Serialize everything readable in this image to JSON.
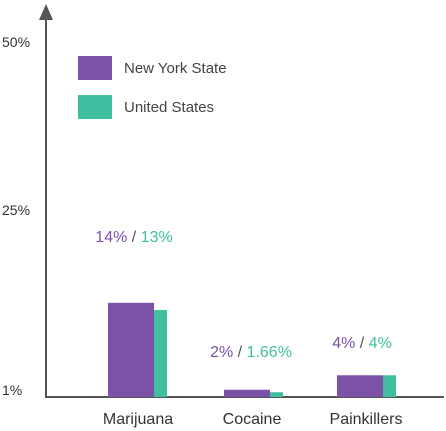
{
  "chart_data": {
    "type": "bar",
    "title": "",
    "xlabel": "",
    "ylabel": "",
    "ylim": [
      1,
      50
    ],
    "y_ticks": [
      "50%",
      "25%",
      "1%"
    ],
    "categories": [
      "Marijuana",
      "Cocaine",
      "Painkillers"
    ],
    "series": [
      {
        "name": "New York State",
        "color": "#7b52a8",
        "values": [
          14,
          2,
          4
        ]
      },
      {
        "name": "United States",
        "color": "#3fbf9f",
        "values": [
          13,
          1.66,
          4
        ]
      }
    ],
    "data_labels": [
      {
        "ny": "14%",
        "sep": " / ",
        "us": "13%"
      },
      {
        "ny": "2%",
        "sep": " / ",
        "us": "1.66%"
      },
      {
        "ny": "4%",
        "sep": " / ",
        "us": "4%"
      }
    ],
    "legend_position": "top-left",
    "grid": false,
    "axis_color": "#555555"
  }
}
